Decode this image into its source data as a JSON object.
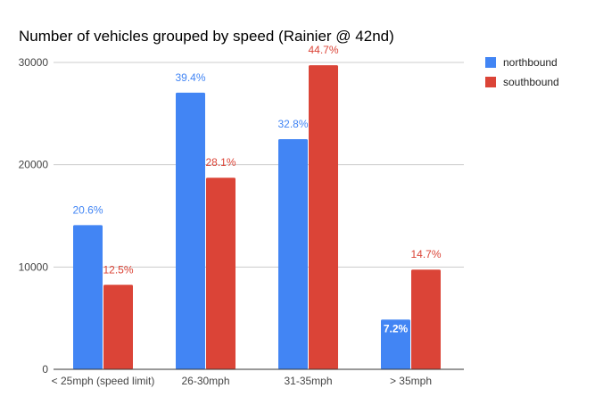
{
  "chart_data": {
    "type": "bar",
    "title": "Number of vehicles grouped by speed (Rainier @ 42nd)",
    "xlabel": "",
    "ylabel": "",
    "ylim": [
      0,
      30000
    ],
    "yticks": [
      0,
      10000,
      20000,
      30000
    ],
    "ytick_labels": [
      "0",
      "10000",
      "20000",
      "30000"
    ],
    "grid": true,
    "legend_position": "right",
    "categories": [
      "< 25mph (speed limit)",
      "26-30mph",
      "31-35mph",
      "> 35mph"
    ],
    "series": [
      {
        "name": "northbound",
        "color": "#4285f4",
        "values": [
          14100,
          27050,
          22500,
          4860
        ],
        "data_labels": [
          "20.6%",
          "39.4%",
          "32.8%",
          "7.2%"
        ]
      },
      {
        "name": "southbound",
        "color": "#db4437",
        "values": [
          8260,
          18730,
          29730,
          9750
        ],
        "data_labels": [
          "12.5%",
          "28.1%",
          "44.7%",
          "14.7%"
        ]
      }
    ]
  }
}
